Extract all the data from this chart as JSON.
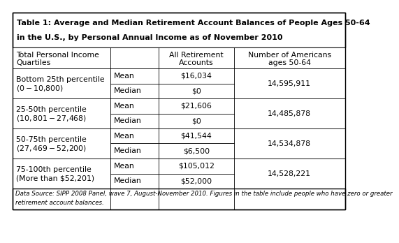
{
  "title_line1": "Table 1: Average and Median Retirement Account Balances of People Ages 50-64",
  "title_line2": "in the U.S., by Personal Annual Income as of November 2010",
  "col_headers_col0": "Total Personal Income\nQuartiles",
  "col_headers_col2": "All Retirement\nAccounts",
  "col_headers_col3": "Number of Americans\nages 50-64",
  "rows": [
    {
      "quartile_line1": "Bottom 25th percentile",
      "quartile_line2": "($0-$10,800)",
      "mean_val": "$16,034",
      "median_val": "$0",
      "americans": "14,595,911"
    },
    {
      "quartile_line1": "25-50th percentile",
      "quartile_line2": "($10,801-$27,468)",
      "mean_val": "$21,606",
      "median_val": "$0",
      "americans": "14,485,878"
    },
    {
      "quartile_line1": "50-75th percentile",
      "quartile_line2": "($27,469-$52,200)",
      "mean_val": "$41,544",
      "median_val": "$6,500",
      "americans": "14,534,878"
    },
    {
      "quartile_line1": "75-100th percentile",
      "quartile_line2": "(More than $52,201)",
      "mean_val": "$105,012",
      "median_val": "$52,000",
      "americans": "14,528,221"
    }
  ],
  "footnote_line1": "Data Source: SIPP 2008 Panel, wave 7, August-November 2010. Figures in the table include people who have zero or greater",
  "footnote_line2": "retirement account balances.",
  "bg_color": "#ffffff",
  "border_color": "#000000",
  "title_fontsize": 8.0,
  "header_fontsize": 7.8,
  "cell_fontsize": 7.8,
  "footnote_fontsize": 6.2
}
